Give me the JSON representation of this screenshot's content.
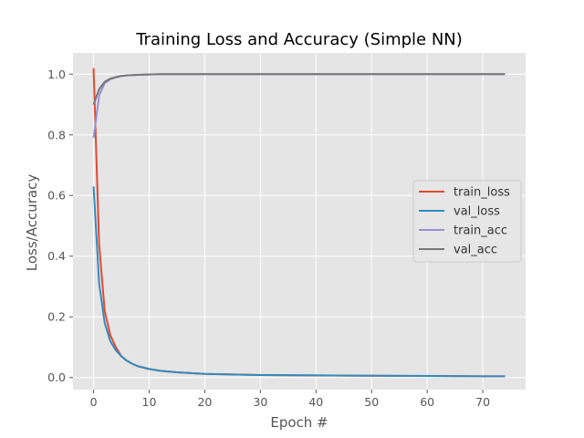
{
  "chart_data": {
    "type": "line",
    "title": "Training Loss and Accuracy (Simple NN)",
    "xlabel": "Epoch #",
    "ylabel": "Loss/Accuracy",
    "xlim": [
      -3.7,
      77.7
    ],
    "ylim": [
      -0.04,
      1.07
    ],
    "xticks": [
      0,
      10,
      20,
      30,
      40,
      50,
      60,
      70
    ],
    "yticks": [
      0.0,
      0.2,
      0.4,
      0.6,
      0.8,
      1.0
    ],
    "ytick_labels": [
      "0.0",
      "0.2",
      "0.4",
      "0.6",
      "0.8",
      "1.0"
    ],
    "grid": true,
    "legend_position": "center-right",
    "background": "#e5e5e5",
    "series": [
      {
        "name": "train_loss",
        "color": "#e24a33",
        "points": [
          [
            0,
            1.02
          ],
          [
            1,
            0.44
          ],
          [
            2,
            0.22
          ],
          [
            3,
            0.14
          ],
          [
            4,
            0.1
          ],
          [
            5,
            0.07
          ],
          [
            6,
            0.055
          ],
          [
            7,
            0.045
          ],
          [
            8,
            0.037
          ],
          [
            10,
            0.028
          ],
          [
            12,
            0.022
          ],
          [
            15,
            0.017
          ],
          [
            20,
            0.012
          ],
          [
            25,
            0.01
          ],
          [
            30,
            0.008
          ],
          [
            40,
            0.007
          ],
          [
            50,
            0.006
          ],
          [
            60,
            0.005
          ],
          [
            70,
            0.004
          ],
          [
            74,
            0.004
          ]
        ]
      },
      {
        "name": "val_loss",
        "color": "#348abd",
        "points": [
          [
            0,
            0.63
          ],
          [
            1,
            0.31
          ],
          [
            2,
            0.18
          ],
          [
            3,
            0.12
          ],
          [
            4,
            0.09
          ],
          [
            5,
            0.07
          ],
          [
            6,
            0.055
          ],
          [
            7,
            0.045
          ],
          [
            8,
            0.037
          ],
          [
            10,
            0.028
          ],
          [
            12,
            0.022
          ],
          [
            15,
            0.017
          ],
          [
            20,
            0.012
          ],
          [
            25,
            0.01
          ],
          [
            30,
            0.008
          ],
          [
            40,
            0.007
          ],
          [
            50,
            0.006
          ],
          [
            60,
            0.005
          ],
          [
            70,
            0.004
          ],
          [
            74,
            0.004
          ]
        ]
      },
      {
        "name": "train_acc",
        "color": "#988ed5",
        "points": [
          [
            0,
            0.79
          ],
          [
            1,
            0.93
          ],
          [
            2,
            0.97
          ],
          [
            3,
            0.983
          ],
          [
            4,
            0.99
          ],
          [
            5,
            0.994
          ],
          [
            6,
            0.996
          ],
          [
            8,
            0.998
          ],
          [
            10,
            0.999
          ],
          [
            12,
            1.0
          ],
          [
            20,
            1.0
          ],
          [
            30,
            1.0
          ],
          [
            40,
            1.0
          ],
          [
            50,
            1.0
          ],
          [
            60,
            1.0
          ],
          [
            70,
            1.0
          ],
          [
            74,
            1.0
          ]
        ]
      },
      {
        "name": "val_acc",
        "color": "#777777",
        "points": [
          [
            0,
            0.9
          ],
          [
            1,
            0.95
          ],
          [
            2,
            0.975
          ],
          [
            3,
            0.985
          ],
          [
            4,
            0.99
          ],
          [
            5,
            0.994
          ],
          [
            6,
            0.996
          ],
          [
            8,
            0.998
          ],
          [
            10,
            0.999
          ],
          [
            12,
            1.0
          ],
          [
            20,
            1.0
          ],
          [
            30,
            1.0
          ],
          [
            40,
            1.0
          ],
          [
            50,
            1.0
          ],
          [
            60,
            1.0
          ],
          [
            70,
            1.0
          ],
          [
            74,
            1.0
          ]
        ]
      }
    ]
  }
}
